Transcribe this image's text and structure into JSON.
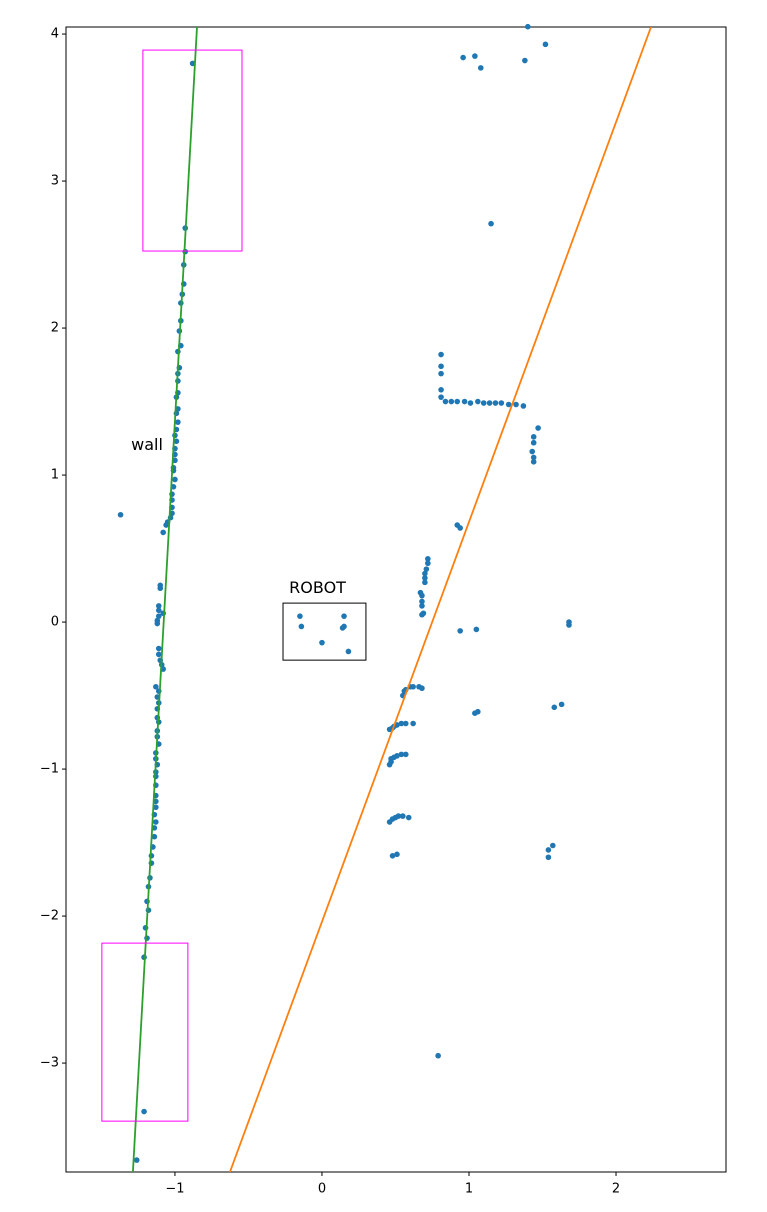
{
  "chart_data": {
    "type": "scatter",
    "xlim": [
      -1.741,
      2.748
    ],
    "ylim": [
      -3.741,
      4.048
    ],
    "xticks": [
      {
        "value": -1,
        "label": "−1"
      },
      0,
      1,
      2
    ],
    "yticks": [
      {
        "value": -3,
        "label": "−3"
      },
      {
        "value": -2,
        "label": "−2"
      },
      {
        "value": -1,
        "label": "−1"
      },
      0,
      1,
      2,
      3,
      4
    ],
    "series": [
      {
        "type": "scatter",
        "color": "#1f77b4",
        "x": [
          -0.88,
          -0.93,
          -0.93,
          -0.94,
          -0.94,
          -0.95,
          -0.96,
          -0.96,
          -0.97,
          -0.96,
          -0.98,
          -0.97,
          -0.98,
          -0.98,
          -0.98,
          -0.99,
          -0.98,
          -0.99,
          -0.98,
          -0.99,
          -1.0,
          -0.99,
          -1.0,
          -1.0,
          -1.0,
          -1.01,
          -1.01,
          -1.0,
          -1.01,
          -1.02,
          -1.02,
          -1.02,
          -1.02,
          -1.03,
          -1.05,
          -1.06,
          -1.08,
          -1.1,
          -1.1,
          -1.11,
          -1.11,
          -1.08,
          -1.11,
          -1.12,
          -1.12,
          -1.11,
          -1.11,
          -1.1,
          -1.09,
          -1.08,
          -1.13,
          -1.11,
          -1.12,
          -1.11,
          -1.12,
          -1.12,
          -1.11,
          -1.12,
          -1.12,
          -1.11,
          -1.13,
          -1.13,
          -1.12,
          -1.13,
          -1.13,
          -1.13,
          -1.13,
          -1.13,
          -1.13,
          -1.14,
          -1.13,
          -1.14,
          -1.14,
          -1.15,
          -1.16,
          -1.16,
          -1.17,
          -1.18,
          -1.19,
          -1.18,
          -1.2,
          -1.19,
          -1.21,
          -1.21,
          -1.26,
          -1.37,
          1.4,
          1.52,
          1.04,
          0.96,
          1.38,
          1.08,
          1.15,
          0.81,
          0.81,
          0.81,
          0.81,
          0.81,
          0.84,
          0.88,
          0.92,
          0.97,
          1.01,
          1.06,
          1.1,
          1.14,
          1.18,
          1.22,
          1.27,
          1.32,
          1.37,
          1.47,
          1.44,
          1.44,
          1.43,
          1.44,
          1.44,
          0.92,
          0.94,
          0.72,
          0.72,
          0.71,
          0.7,
          0.7,
          0.7,
          0.67,
          0.68,
          0.68,
          0.68,
          0.69,
          0.68,
          -0.15,
          -0.14,
          0.15,
          0.0,
          0.14,
          0.15,
          0.18,
          0.94,
          1.05,
          1.68,
          1.68,
          1.63,
          1.58,
          1.06,
          1.04,
          0.6,
          0.62,
          0.66,
          0.68,
          0.56,
          0.55,
          0.57,
          0.57,
          0.54,
          0.51,
          0.49,
          0.48,
          0.46,
          0.62,
          0.57,
          0.54,
          0.51,
          0.49,
          0.47,
          0.46,
          0.47,
          0.59,
          0.55,
          0.52,
          0.5,
          0.48,
          0.46,
          0.51,
          0.48,
          1.54,
          1.57,
          1.54,
          0.79
        ],
        "y": [
          3.8,
          2.68,
          2.52,
          2.43,
          2.3,
          2.23,
          2.17,
          2.05,
          1.98,
          1.88,
          1.84,
          1.73,
          1.69,
          1.64,
          1.56,
          1.53,
          1.45,
          1.42,
          1.36,
          1.31,
          1.27,
          1.23,
          1.18,
          1.14,
          1.1,
          1.05,
          1.03,
          0.97,
          0.92,
          0.87,
          0.83,
          0.78,
          0.74,
          0.71,
          0.68,
          0.66,
          0.61,
          0.25,
          0.23,
          0.11,
          0.08,
          0.06,
          0.04,
          0.01,
          -0.01,
          -0.18,
          -0.22,
          -0.26,
          -0.29,
          -0.32,
          -0.44,
          -0.47,
          -0.51,
          -0.55,
          -0.59,
          -0.65,
          -0.68,
          -0.74,
          -0.78,
          -0.83,
          -0.89,
          -0.93,
          -0.97,
          -1.02,
          -1.05,
          -1.11,
          -1.18,
          -1.22,
          -1.26,
          -1.31,
          -1.36,
          -1.4,
          -1.46,
          -1.53,
          -1.59,
          -1.64,
          -1.74,
          -1.8,
          -1.9,
          -1.96,
          -2.08,
          -2.15,
          -2.28,
          -3.33,
          -3.66,
          0.73,
          4.05,
          3.93,
          3.85,
          3.84,
          3.82,
          3.77,
          2.71,
          1.82,
          1.74,
          1.69,
          1.58,
          1.53,
          1.5,
          1.5,
          1.5,
          1.5,
          1.49,
          1.5,
          1.49,
          1.49,
          1.49,
          1.49,
          1.48,
          1.48,
          1.47,
          1.32,
          1.26,
          1.22,
          1.16,
          1.12,
          1.09,
          0.66,
          0.64,
          0.43,
          0.4,
          0.36,
          0.33,
          0.3,
          0.27,
          0.2,
          0.18,
          0.14,
          0.11,
          0.06,
          0.05,
          0.04,
          -0.03,
          0.04,
          -0.14,
          -0.04,
          -0.03,
          -0.2,
          -0.06,
          -0.05,
          0.0,
          -0.02,
          -0.56,
          -0.58,
          -0.61,
          -0.62,
          -0.44,
          -0.44,
          -0.44,
          -0.45,
          -0.47,
          -0.5,
          -0.46,
          -0.69,
          -0.69,
          -0.7,
          -0.71,
          -0.72,
          -0.73,
          -0.69,
          -0.9,
          -0.9,
          -0.91,
          -0.92,
          -0.93,
          -0.97,
          -0.95,
          -1.33,
          -1.32,
          -1.32,
          -1.33,
          -1.34,
          -1.36,
          -1.58,
          -1.59,
          -1.55,
          -1.52,
          -1.6,
          -2.95
        ]
      },
      {
        "type": "line",
        "color": "#ff7f0e",
        "x": [
          2.238,
          -0.626
        ],
        "y": [
          4.048,
          -3.741
        ]
      },
      {
        "type": "line",
        "color": "#2ca02c",
        "x": [
          -0.85,
          -1.286
        ],
        "y": [
          4.048,
          -3.741
        ]
      }
    ],
    "rectangles": [
      {
        "color": "#ff00ff",
        "x": [
          -1.218,
          -0.544
        ],
        "y": [
          2.524,
          3.891
        ]
      },
      {
        "color": "#ff00ff",
        "x": [
          -1.497,
          -0.912
        ],
        "y": [
          -3.395,
          -2.184
        ]
      },
      {
        "color": "#000000",
        "x": [
          -0.265,
          0.299
        ],
        "y": [
          -0.259,
          0.129
        ]
      }
    ],
    "annotations": [
      {
        "text": "wall",
        "x": -1.19,
        "y": 1.2
      },
      {
        "text": "ROBOT",
        "x": -0.03,
        "y": 0.23
      }
    ]
  }
}
